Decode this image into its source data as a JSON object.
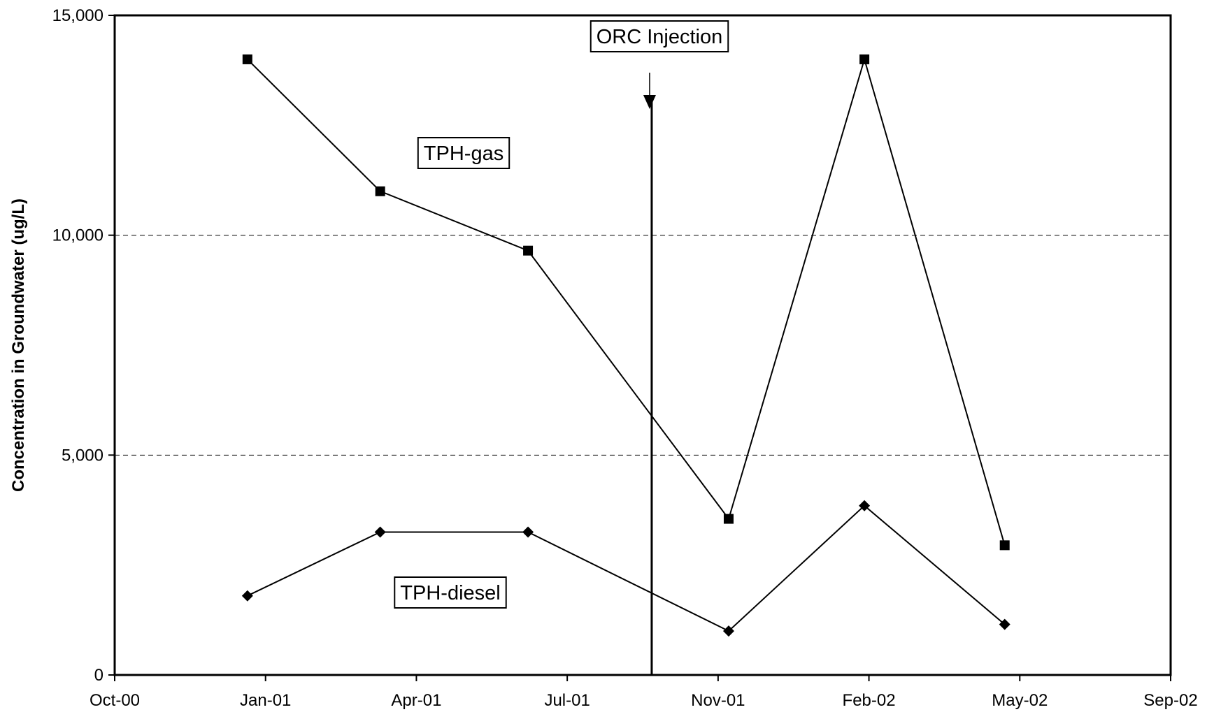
{
  "chart_data": {
    "type": "line",
    "title": "",
    "xlabel": "",
    "ylabel": "Concentration in Groundwater (ug/L)",
    "x_tick_labels": [
      "Oct-00",
      "Jan-01",
      "Apr-01",
      "Jul-01",
      "Nov-01",
      "Feb-02",
      "May-02",
      "Sep-02"
    ],
    "y_tick_labels": [
      "0",
      "5,000",
      "10,000",
      "15,000"
    ],
    "ylim": [
      0,
      15000
    ],
    "xlim": [
      "2000-10-01",
      "2002-09-01"
    ],
    "grid": "horizontal dashed",
    "series": [
      {
        "name": "TPH-gas",
        "marker": "square",
        "points": [
          {
            "x": "2000-12-28",
            "y": 14000
          },
          {
            "x": "2001-03-26",
            "y": 11000
          },
          {
            "x": "2001-07-02",
            "y": 9650
          },
          {
            "x": "2001-11-12",
            "y": 3550
          },
          {
            "x": "2002-02-10",
            "y": 14000
          },
          {
            "x": "2002-05-14",
            "y": 2950
          }
        ]
      },
      {
        "name": "TPH-diesel",
        "marker": "diamond",
        "points": [
          {
            "x": "2000-12-28",
            "y": 1800
          },
          {
            "x": "2001-03-26",
            "y": 3250
          },
          {
            "x": "2001-07-02",
            "y": 3250
          },
          {
            "x": "2001-11-12",
            "y": 1000
          },
          {
            "x": "2002-02-10",
            "y": 3850
          },
          {
            "x": "2002-05-14",
            "y": 1150
          }
        ]
      }
    ],
    "annotations": {
      "event_label": "ORC Injection",
      "event_date": "2001-09-22"
    }
  }
}
